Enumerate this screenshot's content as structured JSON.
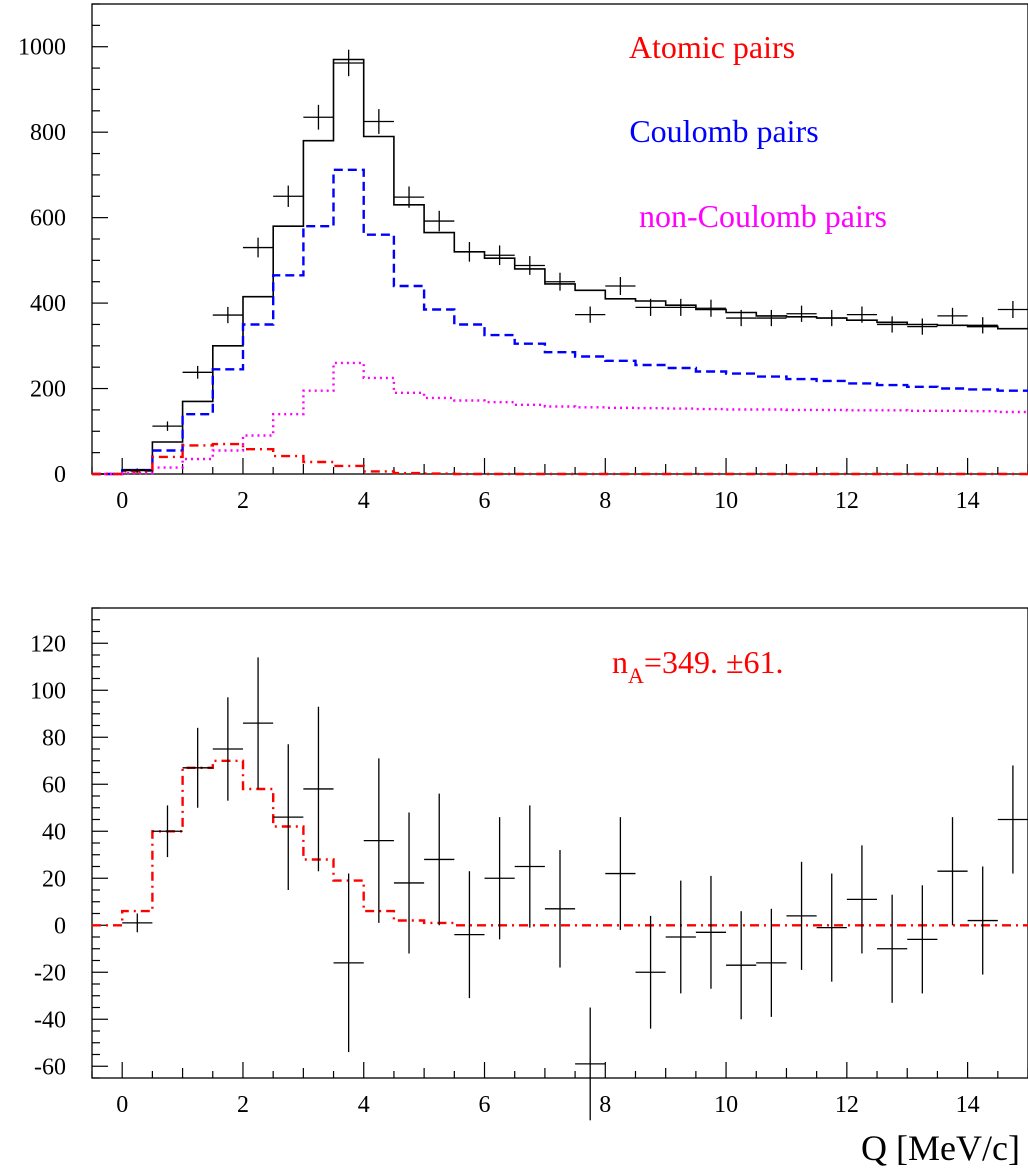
{
  "chart_data": [
    {
      "type": "line",
      "subtype": "histogram-step-with-errorbars",
      "title": "",
      "xlabel": "",
      "ylabel": "",
      "xlim": [
        -0.5,
        15
      ],
      "ylim": [
        0,
        1100
      ],
      "xticks": [
        0,
        2,
        4,
        6,
        8,
        10,
        12,
        14
      ],
      "yticks": [
        0,
        200,
        400,
        600,
        800,
        1000
      ],
      "bin_edges": [
        -0.5,
        0,
        0.5,
        1,
        1.5,
        2,
        2.5,
        3,
        3.5,
        4,
        4.5,
        5,
        5.5,
        6,
        6.5,
        7,
        7.5,
        8,
        8.5,
        9,
        9.5,
        10,
        10.5,
        11,
        11.5,
        12,
        12.5,
        13,
        13.5,
        14,
        14.5,
        15
      ],
      "legend_position": "top-right",
      "legend": [
        {
          "label": "Atomic pairs",
          "color": "#ff0000"
        },
        {
          "label": "Coulomb pairs",
          "color": "#0000ff"
        },
        {
          "label": "non-Coulomb pairs",
          "color": "#ff00ff"
        }
      ],
      "data_points": {
        "color": "#000000",
        "x": [
          0.25,
          0.75,
          1.25,
          1.75,
          2.25,
          2.75,
          3.25,
          3.75,
          4.25,
          4.75,
          5.25,
          5.75,
          6.25,
          6.75,
          7.25,
          7.75,
          8.25,
          8.75,
          9.25,
          9.75,
          10.25,
          10.75,
          11.25,
          11.75,
          12.25,
          12.75,
          13.25,
          13.75,
          14.25,
          14.75
        ],
        "y": [
          8,
          112,
          238,
          372,
          530,
          650,
          835,
          962,
          825,
          648,
          592,
          520,
          512,
          488,
          450,
          373,
          440,
          390,
          390,
          388,
          365,
          365,
          375,
          365,
          373,
          350,
          345,
          370,
          348,
          385
        ],
        "yerr": [
          5,
          11,
          15,
          19,
          23,
          25,
          29,
          31,
          29,
          25,
          24,
          23,
          23,
          22,
          21,
          19,
          21,
          20,
          20,
          20,
          19,
          19,
          19,
          19,
          19,
          19,
          19,
          19,
          19,
          20
        ]
      },
      "series": [
        {
          "name": "",
          "style": "solid",
          "color": "#000000",
          "values": [
            0,
            10,
            75,
            170,
            300,
            415,
            580,
            780,
            970,
            790,
            630,
            565,
            520,
            505,
            480,
            445,
            430,
            410,
            405,
            395,
            385,
            378,
            370,
            368,
            365,
            360,
            355,
            350,
            348,
            345,
            340
          ]
        },
        {
          "name": "Coulomb pairs",
          "style": "dashed",
          "color": "#0000ff",
          "values": [
            0,
            8,
            55,
            140,
            245,
            350,
            465,
            580,
            712,
            560,
            440,
            385,
            350,
            325,
            305,
            285,
            275,
            265,
            255,
            248,
            240,
            235,
            228,
            222,
            218,
            212,
            208,
            204,
            200,
            198,
            195
          ]
        },
        {
          "name": "non-Coulomb pairs",
          "style": "dotted",
          "color": "#ff00ff",
          "values": [
            0,
            2,
            15,
            35,
            55,
            90,
            140,
            195,
            260,
            225,
            190,
            178,
            172,
            168,
            162,
            158,
            156,
            155,
            154,
            153,
            152,
            151,
            151,
            150,
            150,
            149,
            149,
            148,
            148,
            147,
            145
          ]
        },
        {
          "name": "Atomic pairs",
          "style": "dashdot",
          "color": "#ff0000",
          "values": [
            0,
            6,
            40,
            67,
            70,
            58,
            42,
            28,
            19,
            6,
            2,
            1,
            0,
            0,
            0,
            0,
            0,
            0,
            0,
            0,
            0,
            0,
            0,
            0,
            0,
            0,
            0,
            0,
            0,
            0,
            0
          ]
        }
      ]
    },
    {
      "type": "line",
      "subtype": "histogram-step-with-errorbars",
      "title": "",
      "xlabel": "Q [MeV/c]",
      "ylabel": "",
      "xlim": [
        -0.5,
        15
      ],
      "ylim": [
        -65,
        135
      ],
      "xticks": [
        0,
        2,
        4,
        6,
        8,
        10,
        12,
        14
      ],
      "yticks": [
        -60,
        -40,
        -20,
        0,
        20,
        40,
        60,
        80,
        100,
        120
      ],
      "bin_edges": [
        -0.5,
        0,
        0.5,
        1,
        1.5,
        2,
        2.5,
        3,
        3.5,
        4,
        4.5,
        5,
        5.5,
        6,
        6.5,
        7,
        7.5,
        8,
        8.5,
        9,
        9.5,
        10,
        10.5,
        11,
        11.5,
        12,
        12.5,
        13,
        13.5,
        14,
        14.5,
        15
      ],
      "annotation": {
        "text": "n",
        "subscript": "A",
        "suffix": "=349. ±61.",
        "color": "#ff0000"
      },
      "data_points": {
        "color": "#000000",
        "x": [
          0.25,
          0.75,
          1.25,
          1.75,
          2.25,
          2.75,
          3.25,
          3.75,
          4.25,
          4.75,
          5.25,
          5.75,
          6.25,
          6.75,
          7.25,
          7.75,
          8.25,
          8.75,
          9.25,
          9.75,
          10.25,
          10.75,
          11.25,
          11.75,
          12.25,
          12.75,
          13.25,
          13.75,
          14.25,
          14.75
        ],
        "y": [
          1,
          40,
          67,
          75,
          86,
          46,
          58,
          -16,
          36,
          18,
          28,
          -4,
          20,
          25,
          7,
          -59,
          22,
          -20,
          -5,
          -3,
          -17,
          -16,
          4,
          -1,
          11,
          -10,
          -6,
          23,
          2,
          45
        ],
        "yerr": [
          4,
          11,
          17,
          22,
          28,
          31,
          35,
          38,
          35,
          30,
          28,
          27,
          26,
          26,
          25,
          24,
          24,
          24,
          24,
          24,
          23,
          23,
          23,
          23,
          23,
          23,
          23,
          23,
          23,
          23
        ]
      },
      "series": [
        {
          "name": "",
          "style": "dashdot",
          "color": "#ff0000",
          "values": [
            0,
            6,
            40,
            67,
            70,
            58,
            42,
            28,
            19,
            6,
            2,
            1,
            0,
            0,
            0,
            0,
            0,
            0,
            0,
            0,
            0,
            0,
            0,
            0,
            0,
            0,
            0,
            0,
            0,
            0,
            0
          ]
        }
      ]
    }
  ]
}
